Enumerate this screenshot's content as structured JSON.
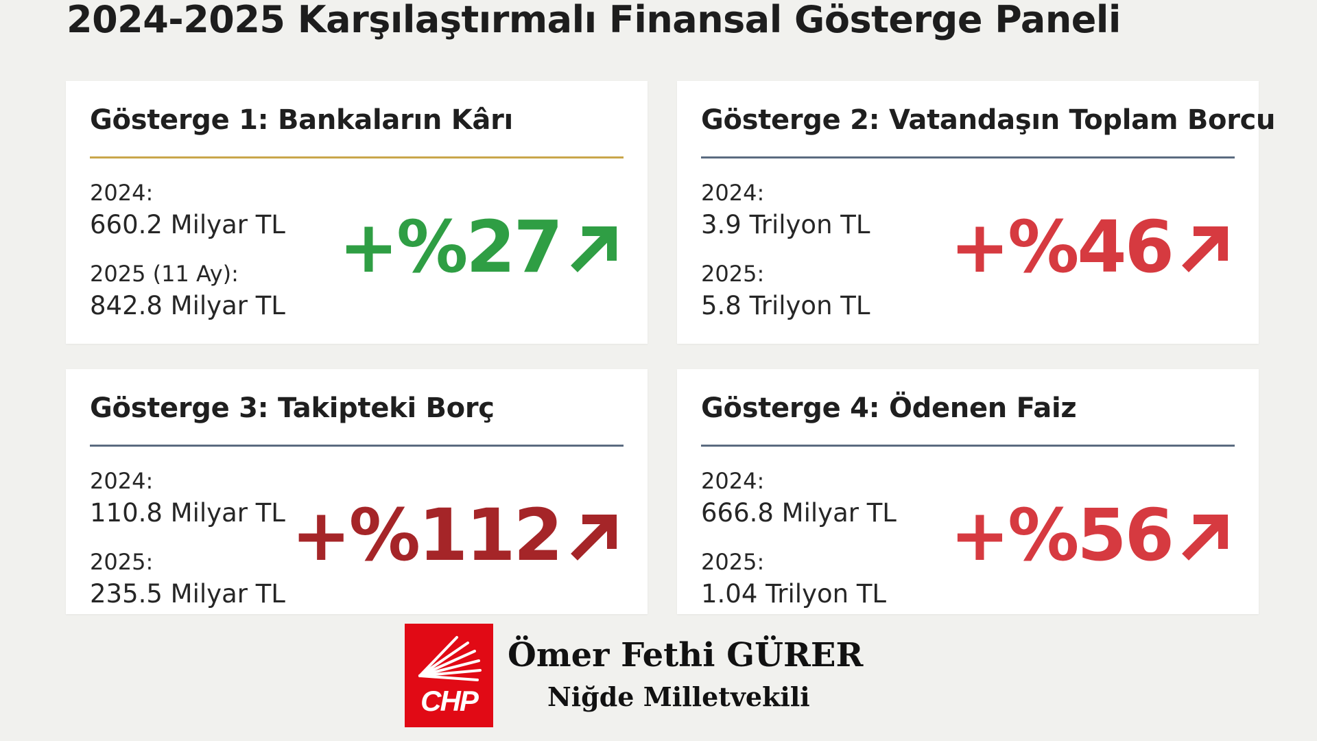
{
  "title": "2024-2025 Karşılaştırmalı Finansal Gösterge Paneli",
  "cards": [
    {
      "title": "Gösterge 1: Bankaların Kârı",
      "rule_color": "#c9a64a",
      "label1": "2024:",
      "value1": "660.2 Milyar TL",
      "label2": "2025 (11 Ay):",
      "value2": "842.8 Milyar TL",
      "change": "+%27",
      "change_color": "#2f9e44",
      "icon": "arrow-up-right-icon"
    },
    {
      "title": "Gösterge 2: Vatandaşın Toplam Borcu",
      "rule_color": "#5a6b80",
      "label1": "2024:",
      "value1": "3.9 Trilyon TL",
      "label2": "2025:",
      "value2": "5.8 Trilyon TL",
      "change": "+%46",
      "change_color": "#d63a40",
      "icon": "arrow-up-right-icon"
    },
    {
      "title": "Gösterge 3: Takipteki Borç",
      "rule_color": "#5a6b80",
      "label1": "2024:",
      "value1": "110.8 Milyar TL",
      "label2": "2025:",
      "value2": "235.5 Milyar TL",
      "change": "+%112",
      "change_color": "#a52528",
      "icon": "arrow-up-right-icon"
    },
    {
      "title": "Gösterge 4: Ödenen Faiz",
      "rule_color": "#5a6b80",
      "label1": "2024:",
      "value1": "666.8 Milyar TL",
      "label2": "2025:",
      "value2": "1.04 Trilyon TL",
      "change": "+%56",
      "change_color": "#d63a40",
      "icon": "arrow-up-right-icon"
    }
  ],
  "footer": {
    "logo_text": "CHP",
    "logo_color": "#e10a15",
    "name": "Ömer Fethi GÜRER",
    "role": "Niğde Milletvekili"
  }
}
